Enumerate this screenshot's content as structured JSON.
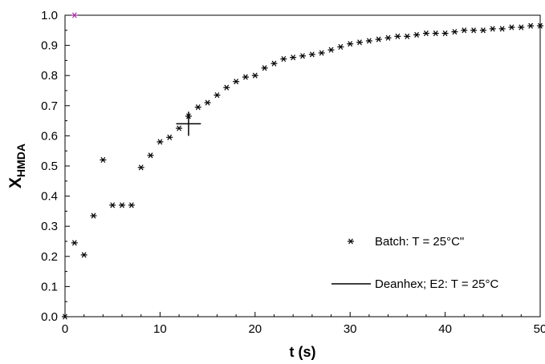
{
  "chart_data": {
    "type": "scatter",
    "xlabel": "t (s)",
    "ylabel": {
      "main": "X",
      "sub": "HMDA"
    },
    "xlim": [
      0,
      50
    ],
    "ylim": [
      0,
      1.0
    ],
    "x_ticks": [
      "0",
      "10",
      "20",
      "30",
      "40",
      "50"
    ],
    "y_ticks": [
      "0.0",
      "0.1",
      "0.2",
      "0.3",
      "0.4",
      "0.5",
      "0.6",
      "0.7",
      "0.8",
      "0.9",
      "1.0"
    ],
    "grid": false,
    "legend_position": "bottom-right",
    "series": [
      {
        "name": "Batch: T = 25°C\"",
        "marker": "asterisk",
        "color": "#000000",
        "points": [
          [
            0,
            0.0
          ],
          [
            1,
            0.245
          ],
          [
            2,
            0.205
          ],
          [
            3,
            0.335
          ],
          [
            4,
            0.52
          ],
          [
            5,
            0.37
          ],
          [
            6,
            0.37
          ],
          [
            7,
            0.37
          ],
          [
            8,
            0.495
          ],
          [
            9,
            0.535
          ],
          [
            10,
            0.58
          ],
          [
            11,
            0.595
          ],
          [
            12,
            0.625
          ],
          [
            13,
            0.665
          ],
          [
            14,
            0.695
          ],
          [
            15,
            0.71
          ],
          [
            16,
            0.735
          ],
          [
            17,
            0.76
          ],
          [
            18,
            0.78
          ],
          [
            19,
            0.795
          ],
          [
            20,
            0.8
          ],
          [
            21,
            0.825
          ],
          [
            22,
            0.84
          ],
          [
            23,
            0.855
          ],
          [
            24,
            0.86
          ],
          [
            25,
            0.865
          ],
          [
            26,
            0.87
          ],
          [
            27,
            0.875
          ],
          [
            28,
            0.885
          ],
          [
            29,
            0.895
          ],
          [
            30,
            0.905
          ],
          [
            31,
            0.91
          ],
          [
            32,
            0.915
          ],
          [
            33,
            0.92
          ],
          [
            34,
            0.925
          ],
          [
            35,
            0.93
          ],
          [
            36,
            0.93
          ],
          [
            37,
            0.935
          ],
          [
            38,
            0.94
          ],
          [
            39,
            0.94
          ],
          [
            40,
            0.94
          ],
          [
            41,
            0.945
          ],
          [
            42,
            0.95
          ],
          [
            43,
            0.95
          ],
          [
            44,
            0.95
          ],
          [
            45,
            0.955
          ],
          [
            46,
            0.955
          ],
          [
            47,
            0.96
          ],
          [
            48,
            0.96
          ],
          [
            49,
            0.965
          ],
          [
            50,
            0.965
          ]
        ],
        "highlight": {
          "x": 1,
          "y": 1.0,
          "color": "#a0309a"
        }
      },
      {
        "name": "Deanhex; E2: T = 25°C",
        "marker": "errorbar-cross",
        "color": "#000000",
        "points": [
          [
            13,
            0.64
          ]
        ],
        "x_error": 1.3,
        "y_error": 0.04
      }
    ]
  }
}
